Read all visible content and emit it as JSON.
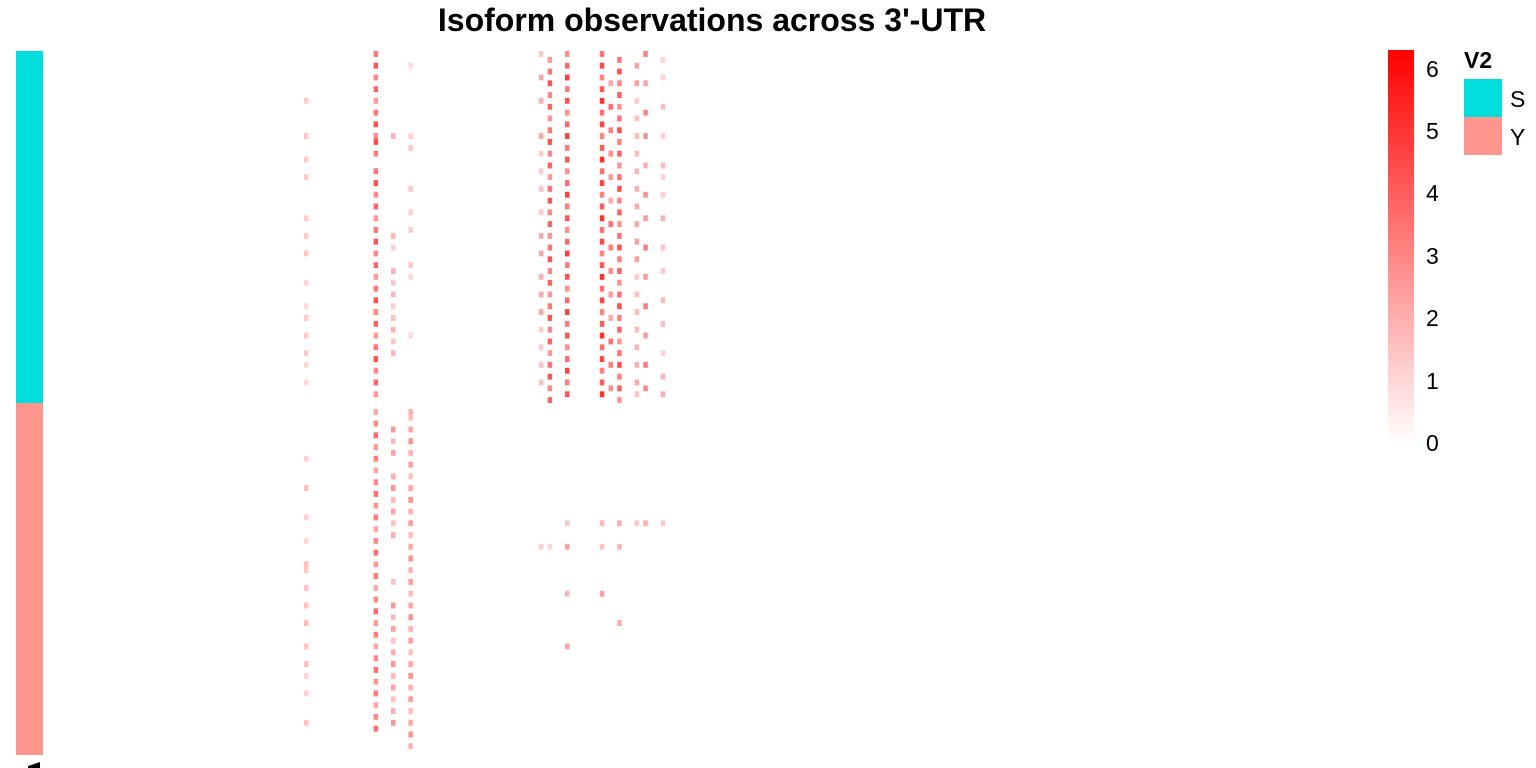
{
  "chart_data": {
    "type": "heatmap",
    "title": "Isoform observations across 3'-UTR",
    "n_rows": 120,
    "n_cols": 80,
    "groups": [
      {
        "name": "S",
        "color": "#00DDDD",
        "row_start": 0,
        "row_end": 59
      },
      {
        "name": "Y",
        "color": "#FF968E",
        "row_start": 60,
        "row_end": 119
      }
    ],
    "colorbar": {
      "min": 0,
      "max": 6.3,
      "ticks": [
        0,
        1,
        2,
        3,
        4,
        5,
        6
      ],
      "low_color": "#FFFFFF",
      "high_color": "#FF0000"
    },
    "annotation_legend_title": "V2",
    "columns": [
      {
        "col": 30,
        "S_rows": [
          8,
          14,
          18,
          21,
          28,
          31,
          34,
          39,
          43,
          45,
          48,
          51,
          53,
          56
        ],
        "Y_rows": [
          69,
          74,
          79,
          83,
          87,
          88,
          91,
          94,
          97,
          101,
          104,
          106,
          109,
          114
        ],
        "S_level": 1.2,
        "Y_level": 1.3
      },
      {
        "col": 38,
        "S_rows": [
          0,
          2,
          4,
          6,
          8,
          10,
          12,
          14,
          15,
          17,
          20,
          22,
          24,
          26,
          28,
          30,
          32,
          34,
          36,
          38,
          40,
          42,
          44,
          46,
          48,
          50,
          52,
          54,
          56,
          58
        ],
        "Y_rows": [
          61,
          63,
          65,
          67,
          69,
          71,
          73,
          75,
          77,
          79,
          81,
          83,
          85,
          87,
          89,
          91,
          93,
          95,
          97,
          99,
          101,
          103,
          105,
          107,
          109,
          111,
          113,
          115
        ],
        "S_level": 3.6,
        "Y_level": 2.9
      },
      {
        "col": 40,
        "S_rows": [
          14,
          31,
          33,
          37,
          39,
          41,
          43,
          45,
          47,
          49,
          51
        ],
        "Y_rows": [
          64,
          66,
          68,
          72,
          74,
          76,
          78,
          80,
          82,
          90,
          94,
          96,
          98,
          100,
          102,
          104,
          106,
          108,
          110,
          112,
          114
        ],
        "S_level": 1.6,
        "Y_level": 2.2
      },
      {
        "col": 42,
        "S_rows": [
          2,
          14,
          16,
          23,
          27,
          30,
          36,
          38,
          48
        ],
        "Y_rows": [
          61,
          62,
          64,
          66,
          68,
          70,
          72,
          74,
          76,
          78,
          80,
          82,
          84,
          86,
          88,
          90,
          92,
          94,
          96,
          98,
          100,
          102,
          104,
          106,
          108,
          110,
          112,
          114,
          116,
          118
        ],
        "S_level": 1.2,
        "Y_level": 2.3
      },
      {
        "col": 57,
        "S_rows": [
          0,
          4,
          8,
          14,
          17,
          20,
          23,
          27,
          31,
          34,
          38,
          41,
          44,
          47,
          50,
          53,
          56
        ],
        "Y_rows": [
          84
        ],
        "S_level": 1.8,
        "Y_level": 1.0
      },
      {
        "col": 58,
        "S_rows": [
          1,
          3,
          5,
          7,
          9,
          11,
          13,
          15,
          17,
          19,
          21,
          23,
          25,
          27,
          29,
          31,
          33,
          35,
          37,
          39,
          41,
          43,
          45,
          47,
          49,
          51,
          53,
          55,
          57,
          59
        ],
        "Y_rows": [
          84
        ],
        "S_level": 3.4,
        "Y_level": 1.2
      },
      {
        "col": 60,
        "S_rows": [
          0,
          2,
          4,
          6,
          8,
          10,
          12,
          14,
          16,
          18,
          20,
          22,
          24,
          26,
          28,
          30,
          32,
          34,
          36,
          38,
          40,
          42,
          44,
          46,
          48,
          50,
          52,
          54,
          56,
          58
        ],
        "Y_rows": [
          80,
          84,
          92,
          101
        ],
        "S_level": 4.0,
        "Y_level": 2.0
      },
      {
        "col": 64,
        "S_rows": [
          0,
          2,
          4,
          6,
          8,
          10,
          12,
          14,
          16,
          18,
          20,
          22,
          24,
          26,
          28,
          30,
          32,
          34,
          36,
          38,
          40,
          42,
          44,
          46,
          48,
          50,
          52,
          54,
          56,
          58
        ],
        "Y_rows": [
          80,
          84,
          92
        ],
        "S_level": 4.3,
        "Y_level": 2.2
      },
      {
        "col": 65,
        "S_rows": [
          5,
          9,
          13,
          17,
          21,
          25,
          29,
          33,
          37,
          41,
          45,
          49,
          53,
          57
        ],
        "Y_rows": [],
        "S_level": 3.0,
        "Y_level": 0
      },
      {
        "col": 66,
        "S_rows": [
          1,
          3,
          5,
          7,
          9,
          11,
          13,
          15,
          17,
          19,
          21,
          23,
          25,
          27,
          29,
          31,
          33,
          35,
          37,
          39,
          41,
          43,
          45,
          47,
          49,
          51,
          53,
          55,
          57,
          59
        ],
        "Y_rows": [
          80,
          84,
          97
        ],
        "S_level": 3.5,
        "Y_level": 1.8
      },
      {
        "col": 68,
        "S_rows": [
          2,
          5,
          8,
          11,
          14,
          17,
          20,
          23,
          26,
          29,
          32,
          35,
          38,
          41,
          44,
          47,
          50,
          53,
          56,
          58
        ],
        "Y_rows": [
          80
        ],
        "S_level": 2.0,
        "Y_level": 1.5
      },
      {
        "col": 69,
        "S_rows": [
          0,
          5,
          10,
          14,
          19,
          24,
          28,
          33,
          38,
          43,
          48,
          53,
          57
        ],
        "Y_rows": [
          80
        ],
        "S_level": 2.8,
        "Y_level": 1.8
      },
      {
        "col": 71,
        "S_rows": [
          1,
          4,
          9,
          14,
          19,
          21,
          24,
          28,
          33,
          37,
          42,
          46,
          51,
          55,
          58
        ],
        "Y_rows": [
          80
        ],
        "S_level": 1.6,
        "Y_level": 1.6
      }
    ]
  }
}
